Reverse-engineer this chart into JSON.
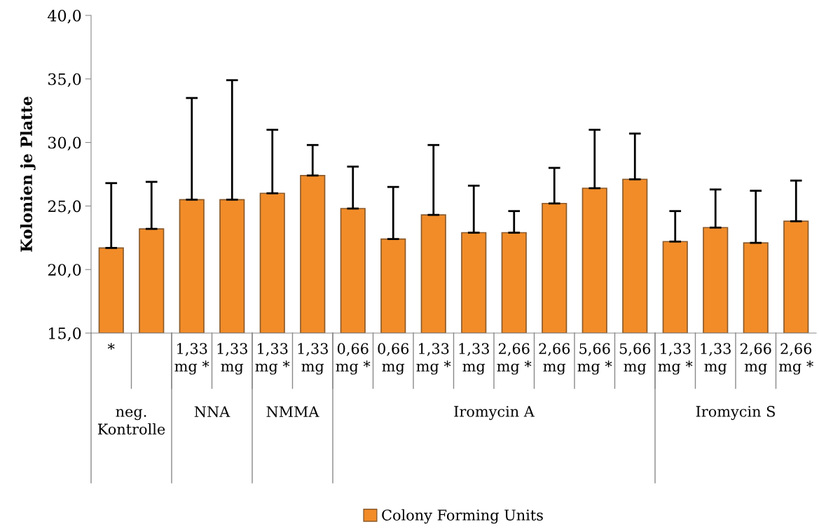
{
  "chart_data": {
    "type": "bar",
    "ylabel": "Kolonien je Platte",
    "categories": [
      "*",
      null,
      "1,33 mg *",
      "1,33 mg",
      "1,33 mg *",
      "1,33 mg",
      "0,66 mg *",
      "0,66 mg",
      "1,33 mg *",
      "1,33 mg",
      "2,66 mg *",
      "2,66 mg",
      "5,66 mg *",
      "5,66 mg",
      "1,33 mg *",
      "1,33 mg",
      "2,66 mg",
      "2,66 mg *"
    ],
    "series": [
      {
        "name": "Colony Forming Units",
        "color": "#f28c28",
        "values": [
          21.7,
          23.2,
          25.5,
          25.5,
          26.0,
          27.4,
          24.8,
          22.4,
          24.3,
          22.9,
          22.9,
          25.2,
          26.4,
          27.1,
          22.2,
          23.3,
          22.1,
          23.8
        ],
        "errors": [
          [
            21.7,
            26.8
          ],
          [
            23.2,
            26.9
          ],
          [
            25.5,
            33.5
          ],
          [
            25.5,
            34.9
          ],
          [
            26.0,
            31.0
          ],
          [
            27.4,
            29.8
          ],
          [
            24.8,
            28.1
          ],
          [
            22.4,
            26.5
          ],
          [
            24.3,
            29.8
          ],
          [
            22.9,
            26.6
          ],
          [
            22.9,
            24.6
          ],
          [
            25.2,
            28.0
          ],
          [
            26.4,
            31.0
          ],
          [
            27.1,
            30.7
          ],
          [
            22.2,
            24.6
          ],
          [
            23.3,
            26.3
          ],
          [
            22.1,
            26.2
          ],
          [
            23.8,
            27.0
          ]
        ]
      }
    ],
    "annotations": [
      "neg. Kontrolle",
      "NNA",
      "NMMA",
      "Iromycin A",
      "Iromycin S"
    ],
    "ylim": [
      15,
      40
    ],
    "yticks": [
      {
        "value": 15,
        "label": "15,0"
      },
      {
        "value": 20,
        "label": "20,0"
      },
      {
        "value": 25,
        "label": "25,0"
      },
      {
        "value": 30,
        "label": "30,0"
      },
      {
        "value": 35,
        "label": "35,0"
      },
      {
        "value": 40,
        "label": "40,0"
      }
    ],
    "grid": false,
    "legend": "bottom"
  }
}
